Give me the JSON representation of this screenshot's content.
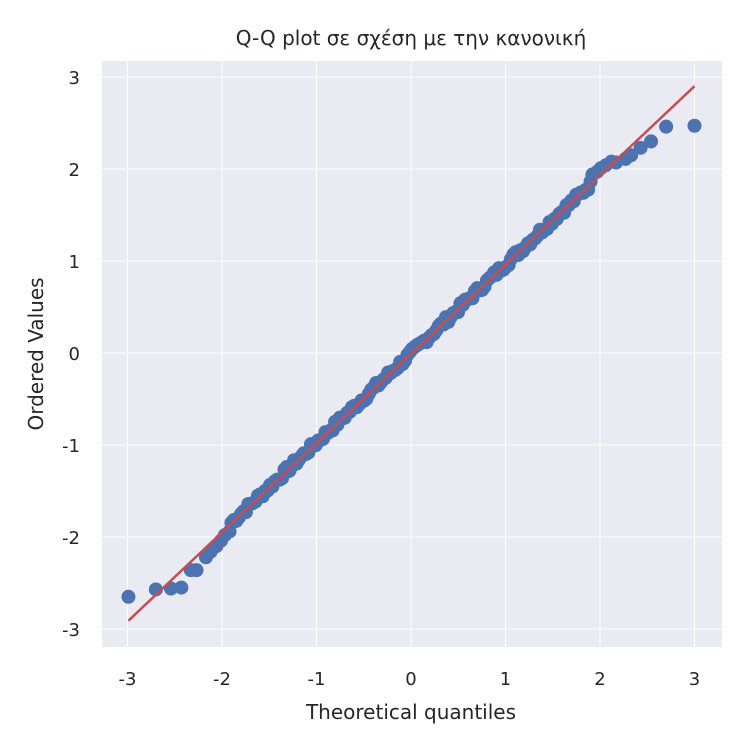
{
  "chart_data": {
    "type": "scatter",
    "title": "Q-Q plot σε σχέση με την κανονική",
    "xlabel": "Theoretical quantiles",
    "ylabel": "Ordered Values",
    "xlim": [
      -3.27,
      3.29
    ],
    "ylim": [
      -3.17,
      3.2
    ],
    "xticks": [
      -3,
      -2,
      -1,
      0,
      1,
      2,
      3
    ],
    "yticks": [
      -3,
      -2,
      -1,
      0,
      1,
      2,
      3
    ],
    "grid": true,
    "legend": null,
    "colors": {
      "background": "#EAEAF2",
      "grid": "#FFFFFF",
      "points": "#4C72B0",
      "fit_line": "#C44E52"
    },
    "fit_line": {
      "x": [
        -2.99,
        3.0
      ],
      "y": [
        -2.91,
        2.9
      ]
    },
    "tail_points_low": [
      [
        -2.99,
        -2.65
      ],
      [
        -2.7,
        -2.57
      ],
      [
        -2.54,
        -2.56
      ],
      [
        -2.43,
        -2.55
      ],
      [
        -2.33,
        -2.36
      ],
      [
        -2.27,
        -2.36
      ],
      [
        -2.17,
        -2.22
      ],
      [
        -2.12,
        -2.16
      ],
      [
        -2.06,
        -2.1
      ],
      [
        -2.01,
        -2.04
      ],
      [
        -1.97,
        -1.98
      ],
      [
        -1.92,
        -1.94
      ]
    ],
    "tail_points_high": [
      [
        1.92,
        1.94
      ],
      [
        1.97,
        1.97
      ],
      [
        2.01,
        2.01
      ],
      [
        2.06,
        2.04
      ],
      [
        2.12,
        2.08
      ],
      [
        2.17,
        2.07
      ],
      [
        2.27,
        2.11
      ],
      [
        2.33,
        2.15
      ],
      [
        2.43,
        2.23
      ],
      [
        2.54,
        2.3
      ],
      [
        2.7,
        2.46
      ],
      [
        3.0,
        2.47
      ]
    ],
    "bulk": {
      "n_points": 150,
      "x_range": [
        -1.9,
        1.9
      ],
      "slope": 0.968,
      "intercept": -0.005
    }
  }
}
